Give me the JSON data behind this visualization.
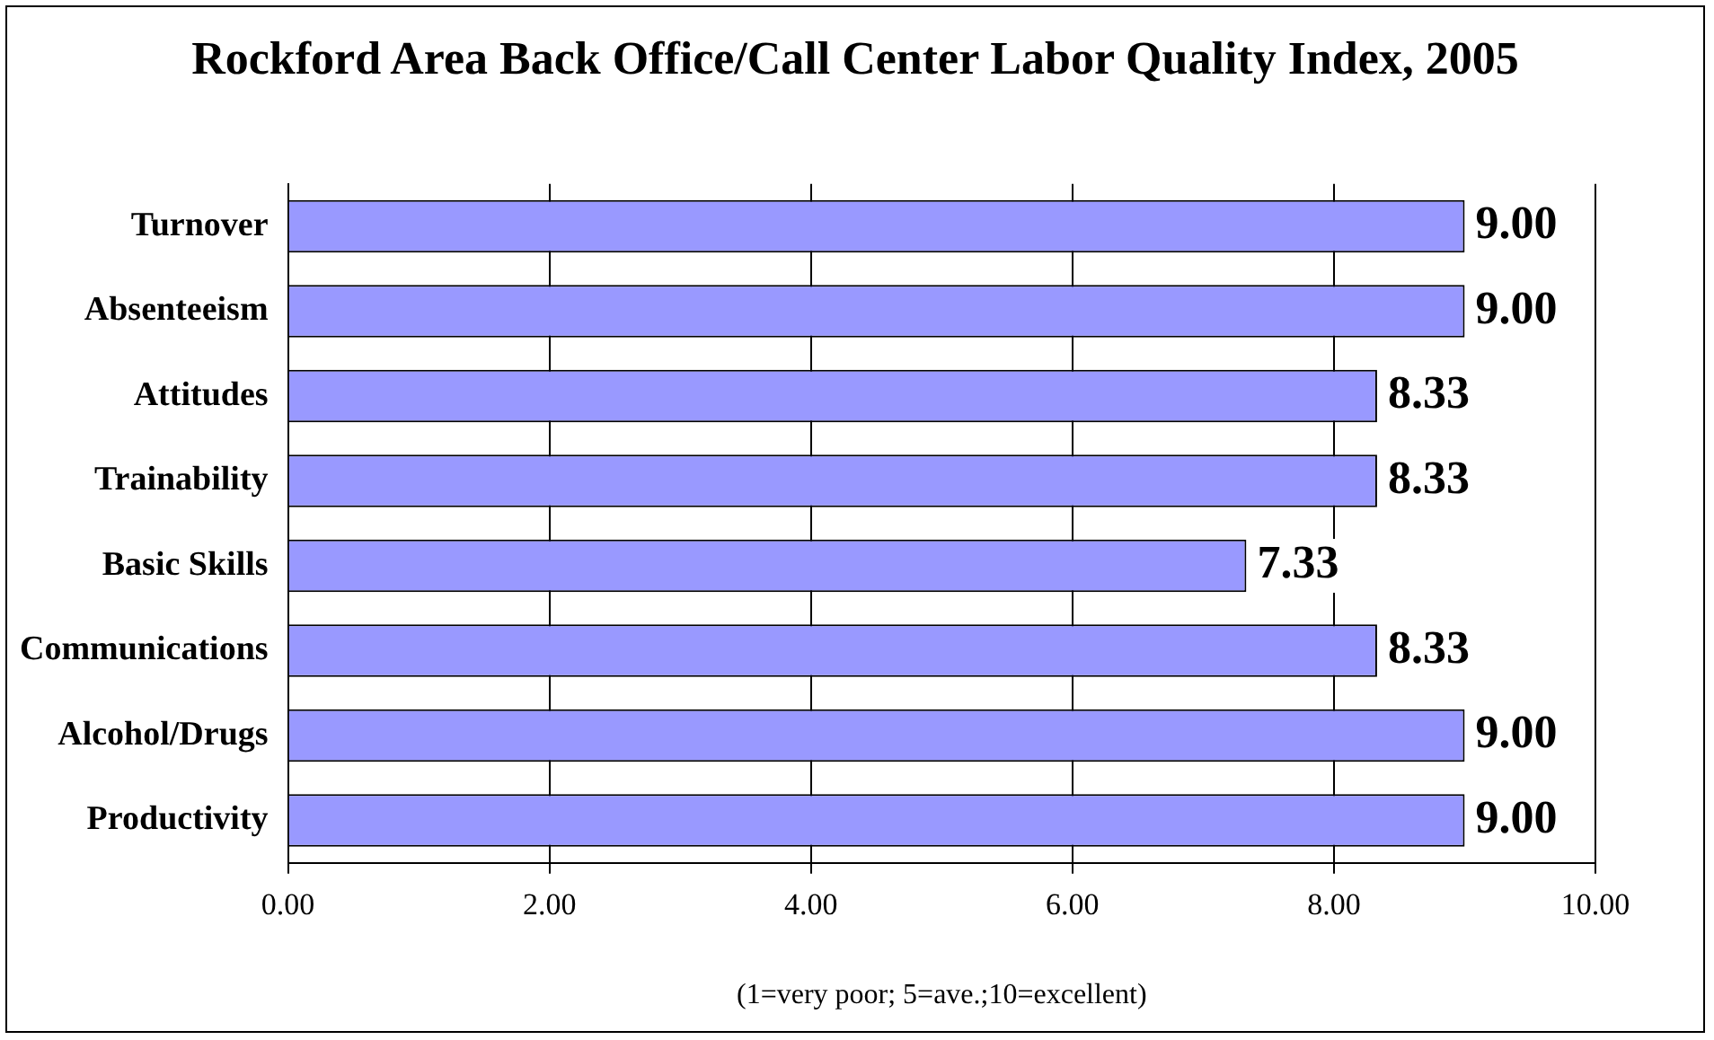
{
  "chart_data": {
    "type": "bar",
    "orientation": "horizontal",
    "title": "Rockford Area Back Office/Call Center Labor Quality Index, 2005",
    "xlabel": "(1=very poor; 5=ave.;10=excellent)",
    "categories": [
      "Turnover",
      "Absenteeism",
      "Attitudes",
      "Trainability",
      "Basic Skills",
      "Communications",
      "Alcohol/Drugs",
      "Productivity"
    ],
    "values": [
      9,
      9,
      8.33,
      8.33,
      7.33,
      8.33,
      9,
      9
    ],
    "value_labels": [
      "9.00",
      "9.00",
      "8.33",
      "8.33",
      "7.33",
      "8.33",
      "9.00",
      "9.00"
    ],
    "color": "#9999ff",
    "xlim": [
      0,
      10
    ],
    "xticks": [
      {
        "value": 0,
        "label": "0.00"
      },
      {
        "value": 2,
        "label": "2.00"
      },
      {
        "value": 4,
        "label": "4.00"
      },
      {
        "value": 6,
        "label": "6.00"
      },
      {
        "value": 8,
        "label": "8.00"
      },
      {
        "value": 10,
        "label": "10.00"
      }
    ],
    "grid": "x",
    "legend": false
  }
}
